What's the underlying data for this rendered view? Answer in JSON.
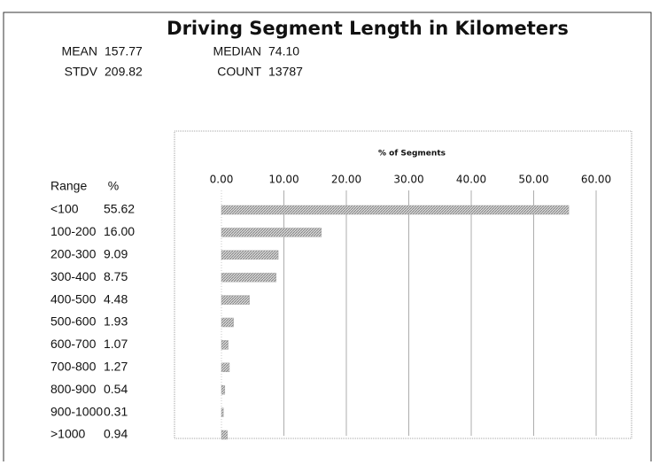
{
  "chart_data": {
    "type": "bar",
    "orientation": "horizontal",
    "title": "Driving Segment Length in Kilometers",
    "stats": [
      {
        "label": "MEAN",
        "value": "157.77"
      },
      {
        "label": "STDV",
        "value": "209.82"
      },
      {
        "label": "MEDIAN",
        "value": "74.10"
      },
      {
        "label": "COUNT",
        "value": "13787"
      }
    ],
    "table_headers": [
      "Range",
      "%"
    ],
    "x_label": "% of Segments",
    "categories": [
      "<100",
      "100-200",
      "200-300",
      "300-400",
      "400-500",
      "500-600",
      "600-700",
      "700-800",
      "800-900",
      "900-1000",
      ">1000"
    ],
    "values": [
      55.62,
      16.0,
      9.09,
      8.75,
      4.48,
      1.93,
      1.07,
      1.27,
      0.54,
      0.31,
      0.94
    ],
    "value_labels": [
      "55.62",
      "16.00",
      "9.09",
      "8.75",
      "4.48",
      "1.93",
      "1.07",
      "1.27",
      "0.54",
      "0.31",
      "0.94"
    ],
    "color": "#a8a8a8",
    "xlim": [
      0,
      60
    ],
    "xticks": [
      {
        "value": 0,
        "label": "0.00"
      },
      {
        "value": 10,
        "label": "10.00"
      },
      {
        "value": 20,
        "label": "20.00"
      },
      {
        "value": 30,
        "label": "30.00"
      },
      {
        "value": 40,
        "label": "40.00"
      },
      {
        "value": 50,
        "label": "50.00"
      },
      {
        "value": 60,
        "label": "60.00"
      }
    ],
    "grid": true
  }
}
